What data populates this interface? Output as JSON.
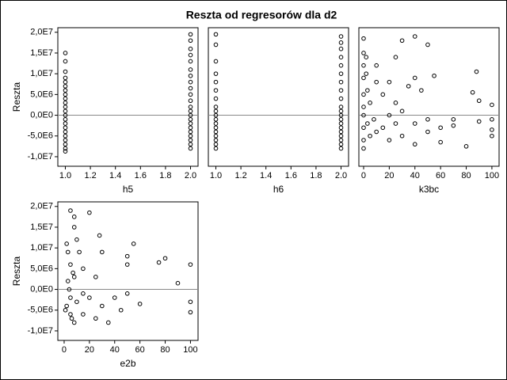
{
  "title": "Reszta od regresorów dla d2",
  "chart_data": [
    {
      "type": "scatter",
      "xlabel": "h5",
      "ylabel": "Reszta",
      "x": [
        1,
        1,
        1,
        1,
        1,
        1,
        1,
        1,
        1,
        1,
        1,
        1,
        1,
        1,
        1,
        1,
        1,
        1,
        1,
        1,
        1,
        1,
        2,
        2,
        2,
        2,
        2,
        2,
        2,
        2,
        2,
        2,
        2,
        2,
        2,
        2,
        2,
        2,
        2,
        2,
        2,
        2,
        2,
        2
      ],
      "y": [
        15000000,
        13000000,
        10500000,
        9000000,
        8000000,
        7000000,
        6000000,
        5000000,
        4000000,
        3000000,
        2000000,
        1000000,
        0,
        -1000000,
        -2000000,
        -3000000,
        -4000000,
        -5000000,
        -6000000,
        -7000000,
        -8000000,
        -8700000,
        19500000,
        18000000,
        16000000,
        14500000,
        13000000,
        11000000,
        9500000,
        8000000,
        6500000,
        5000000,
        3500000,
        2000000,
        1000000,
        0,
        -1000000,
        -2000000,
        -3000000,
        -4000000,
        -5000000,
        -6000000,
        -7000000,
        -8000000
      ],
      "xlim": [
        0.94,
        2.06
      ],
      "ylim": [
        -12300000,
        21100000
      ],
      "xticks": [
        {
          "value": 1,
          "label": "1.0"
        },
        {
          "value": 1.2,
          "label": "1.2"
        },
        {
          "value": 1.4,
          "label": "1.4"
        },
        {
          "value": 1.6,
          "label": "1.6"
        },
        {
          "value": 1.8,
          "label": "1.8"
        },
        {
          "value": 2,
          "label": "2.0"
        }
      ],
      "yticks": [
        {
          "value": 20000000,
          "label": "2,0E7"
        },
        {
          "value": 15000000,
          "label": "1,5E7"
        },
        {
          "value": 10000000,
          "label": "1,0E7"
        },
        {
          "value": 5000000,
          "label": "5,0E6"
        },
        {
          "value": 0,
          "label": "0,0E0"
        },
        {
          "value": -5000000,
          "label": "-5,0E6"
        },
        {
          "value": -10000000,
          "label": "-1,0E7"
        }
      ],
      "hline": 0
    },
    {
      "type": "scatter",
      "xlabel": "h6",
      "x": [
        1,
        1,
        1,
        1,
        1,
        1,
        1,
        1,
        1,
        1,
        1,
        1,
        1,
        1,
        1,
        1,
        1,
        1,
        2,
        2,
        2,
        2,
        2,
        2,
        2,
        2,
        2,
        2,
        2,
        2,
        2,
        2,
        2,
        2,
        2,
        2,
        2,
        2
      ],
      "y": [
        19500000,
        17000000,
        13000000,
        10000000,
        8000000,
        6000000,
        4000000,
        2000000,
        1000000,
        0,
        -1000000,
        -2000000,
        -3000000,
        -4000000,
        -5000000,
        -6000000,
        -7000000,
        -8000000,
        19000000,
        17500000,
        16000000,
        14000000,
        12000000,
        10000000,
        8000000,
        6000000,
        4000000,
        2000000,
        1000000,
        0,
        -1000000,
        -2000000,
        -3000000,
        -4000000,
        -5000000,
        -6000000,
        -7000000,
        -8000000
      ],
      "xlim": [
        0.94,
        2.06
      ],
      "ylim": [
        -12300000,
        21100000
      ],
      "xticks": [
        {
          "value": 1,
          "label": "1.0"
        },
        {
          "value": 1.2,
          "label": "1.2"
        },
        {
          "value": 1.4,
          "label": "1.4"
        },
        {
          "value": 1.6,
          "label": "1.6"
        },
        {
          "value": 1.8,
          "label": "1.8"
        },
        {
          "value": 2,
          "label": "2.0"
        }
      ],
      "hline": 0
    },
    {
      "type": "scatter",
      "xlabel": "k3bc",
      "x": [
        0,
        0,
        0,
        0,
        0,
        0,
        0,
        0,
        0,
        0,
        2,
        2,
        3,
        3,
        5,
        5,
        8,
        10,
        10,
        10,
        15,
        15,
        20,
        20,
        20,
        25,
        25,
        25,
        30,
        30,
        30,
        35,
        40,
        40,
        40,
        40,
        45,
        50,
        50,
        50,
        55,
        60,
        60,
        70,
        70,
        80,
        85,
        88,
        90,
        90,
        100,
        100,
        100,
        100
      ],
      "y": [
        18500000,
        15000000,
        12000000,
        9000000,
        5000000,
        2000000,
        0,
        -3000000,
        -6000000,
        -8000000,
        14000000,
        10000000,
        6000000,
        -2000000,
        -5000000,
        3000000,
        -1000000,
        12000000,
        8000000,
        -4000000,
        5000000,
        -3000000,
        8000000,
        0,
        -6000000,
        14000000,
        3000000,
        -2000000,
        18000000,
        -5000000,
        1000000,
        7000000,
        19000000,
        9000000,
        -2000000,
        -7000000,
        6000000,
        17000000,
        -1000000,
        -4000000,
        9500000,
        -3000000,
        -6500000,
        -1000000,
        -2500000,
        -7500000,
        5500000,
        10500000,
        3500000,
        -1500000,
        -1000000,
        -3500000,
        -5000000,
        2500000
      ],
      "xlim": [
        -3.7,
        105.6
      ],
      "ylim": [
        -12300000,
        21100000
      ],
      "xticks": [
        0,
        20,
        40,
        60,
        80,
        100
      ],
      "hline": 0
    },
    {
      "type": "scatter",
      "xlabel": "e2b",
      "ylabel": "Reszta",
      "x": [
        2,
        3,
        5,
        5,
        5,
        5,
        3,
        2,
        8,
        8,
        8,
        8,
        10,
        10,
        12,
        15,
        15,
        15,
        20,
        20,
        25,
        25,
        28,
        30,
        30,
        35,
        40,
        45,
        50,
        50,
        50,
        55,
        60,
        75,
        80,
        90,
        100,
        100,
        100,
        4,
        6,
        7,
        1
      ],
      "y": [
        11000000,
        9000000,
        19000000,
        6000000,
        -2000000,
        -6000000,
        2000000,
        -4000000,
        17500000,
        15000000,
        3000000,
        -8000000,
        12000000,
        -3000000,
        9000000,
        5000000,
        -1000000,
        -6000000,
        18500000,
        -2000000,
        3000000,
        -7000000,
        13000000,
        9000000,
        -4000000,
        -8000000,
        -2000000,
        -5000000,
        8000000,
        6000000,
        -1000000,
        11000000,
        -3500000,
        6500000,
        7500000,
        1500000,
        6000000,
        -3000000,
        -5500000,
        0,
        -7000000,
        4000000,
        -5000000
      ],
      "xlim": [
        -5,
        106
      ],
      "ylim": [
        -12300000,
        21100000
      ],
      "xticks": [
        0,
        20,
        40,
        60,
        80,
        100
      ],
      "yticks": [
        {
          "value": 20000000,
          "label": "2,0E7"
        },
        {
          "value": 15000000,
          "label": "1,5E7"
        },
        {
          "value": 10000000,
          "label": "1,0E7"
        },
        {
          "value": 5000000,
          "label": "5,0E6"
        },
        {
          "value": 0,
          "label": "0,0E0"
        },
        {
          "value": -5000000,
          "label": "-5,0E6"
        },
        {
          "value": -10000000,
          "label": "-1,0E7"
        }
      ],
      "hline": 0
    }
  ]
}
